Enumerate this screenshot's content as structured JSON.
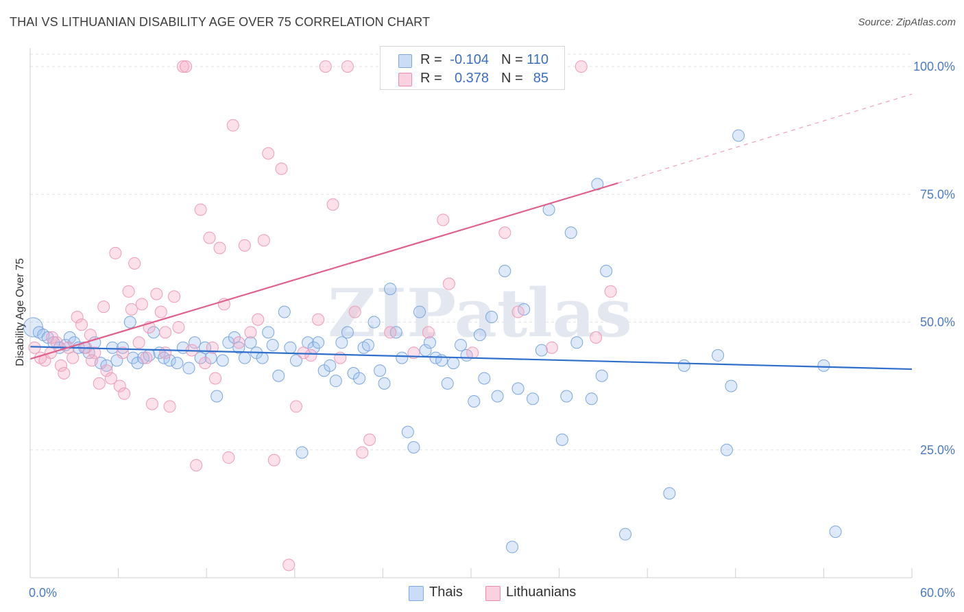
{
  "title": "THAI VS LITHUANIAN DISABILITY AGE OVER 75 CORRELATION CHART",
  "source": "Source: ZipAtlas.com",
  "watermark": "ZIPatlas",
  "legend": {
    "rows": [
      {
        "r_label": "R =",
        "r_value": "-0.104",
        "n_label": "N =",
        "n_value": "110",
        "color": "#a8c8f0"
      },
      {
        "r_label": "R =",
        "r_value": "0.378",
        "n_label": "N =",
        "n_value": "85",
        "color": "#f5b8cc"
      }
    ]
  },
  "bottom_legend": [
    {
      "label": "Thais",
      "color": "#a8c8f0"
    },
    {
      "label": "Lithuanians",
      "color": "#f5b8cc"
    }
  ],
  "chart_data": {
    "type": "scatter",
    "title": "THAI VS LITHUANIAN DISABILITY AGE OVER 75 CORRELATION CHART",
    "xlabel": "",
    "ylabel": "Disability Age Over 75",
    "xlim": [
      0,
      60
    ],
    "ylim": [
      0,
      105
    ],
    "x_tick_labels": [
      "0.0%",
      "60.0%"
    ],
    "y_tick_labels": [
      "100.0%",
      "75.0%",
      "50.0%",
      "25.0%"
    ],
    "y_ticks": [
      100,
      75,
      50,
      25
    ],
    "grid": true,
    "legend_placement": "bottom-center",
    "series": [
      {
        "name": "Thais",
        "color": "#6b9fe0",
        "trend": {
          "x0": 0,
          "y0": 45.2,
          "x1": 60,
          "y1": 40.8
        },
        "points": [
          [
            0.2,
            49
          ],
          [
            0.6,
            48
          ],
          [
            0.9,
            47.5
          ],
          [
            1.2,
            47
          ],
          [
            1.6,
            46
          ],
          [
            2.0,
            45
          ],
          [
            2.4,
            45.5
          ],
          [
            2.7,
            47
          ],
          [
            3.0,
            46
          ],
          [
            3.3,
            45
          ],
          [
            3.7,
            45
          ],
          [
            4.0,
            44
          ],
          [
            4.4,
            46
          ],
          [
            4.8,
            42
          ],
          [
            5.2,
            41.5
          ],
          [
            5.6,
            45
          ],
          [
            5.9,
            42.5
          ],
          [
            6.3,
            45
          ],
          [
            6.8,
            50
          ],
          [
            7.0,
            43
          ],
          [
            7.3,
            42
          ],
          [
            7.7,
            43
          ],
          [
            8.1,
            43.5
          ],
          [
            8.4,
            48
          ],
          [
            8.8,
            44
          ],
          [
            9.1,
            43
          ],
          [
            9.5,
            42.5
          ],
          [
            10,
            42
          ],
          [
            10.4,
            45
          ],
          [
            10.8,
            41
          ],
          [
            11.2,
            46
          ],
          [
            11.6,
            43
          ],
          [
            11.9,
            45
          ],
          [
            12.3,
            43
          ],
          [
            12.7,
            35.5
          ],
          [
            13.1,
            42.5
          ],
          [
            13.5,
            46
          ],
          [
            13.9,
            47
          ],
          [
            14.2,
            45
          ],
          [
            14.6,
            43
          ],
          [
            15,
            46
          ],
          [
            15.4,
            44
          ],
          [
            15.8,
            43
          ],
          [
            16.2,
            48
          ],
          [
            16.5,
            45.5
          ],
          [
            16.9,
            39.5
          ],
          [
            17.3,
            52
          ],
          [
            17.7,
            45
          ],
          [
            18.1,
            42.5
          ],
          [
            18.5,
            24.5
          ],
          [
            18.9,
            46
          ],
          [
            19.3,
            45
          ],
          [
            19.6,
            46
          ],
          [
            20,
            40.5
          ],
          [
            20.4,
            41.5
          ],
          [
            20.8,
            38.5
          ],
          [
            21.2,
            46
          ],
          [
            21.6,
            48
          ],
          [
            22,
            40
          ],
          [
            22.4,
            39
          ],
          [
            22.7,
            45
          ],
          [
            23,
            45.5
          ],
          [
            23.4,
            50
          ],
          [
            23.8,
            40.5
          ],
          [
            24.1,
            38
          ],
          [
            24.5,
            56.5
          ],
          [
            24.9,
            48
          ],
          [
            25.3,
            43
          ],
          [
            25.7,
            28.5
          ],
          [
            26.1,
            25.5
          ],
          [
            26.5,
            52
          ],
          [
            26.9,
            44.5
          ],
          [
            27.2,
            46
          ],
          [
            27.6,
            43
          ],
          [
            28,
            42.5
          ],
          [
            28.4,
            38
          ],
          [
            28.8,
            42
          ],
          [
            29.3,
            45.5
          ],
          [
            29.7,
            43.5
          ],
          [
            30.2,
            34.5
          ],
          [
            30.6,
            47.5
          ],
          [
            30.9,
            39
          ],
          [
            31.4,
            51
          ],
          [
            31.8,
            35.5
          ],
          [
            32.3,
            60
          ],
          [
            32.8,
            6
          ],
          [
            33.2,
            37
          ],
          [
            33.6,
            52.5
          ],
          [
            34.2,
            35
          ],
          [
            34.8,
            44.5
          ],
          [
            35.3,
            72
          ],
          [
            36.2,
            27
          ],
          [
            36.5,
            35.5
          ],
          [
            36.8,
            67.5
          ],
          [
            37.2,
            46
          ],
          [
            38.2,
            35
          ],
          [
            38.6,
            77
          ],
          [
            38.9,
            39.5
          ],
          [
            39.2,
            60
          ],
          [
            40.5,
            8.5
          ],
          [
            43.5,
            16.5
          ],
          [
            44.5,
            41.5
          ],
          [
            46.8,
            43.5
          ],
          [
            47.4,
            25
          ],
          [
            47.7,
            37.5
          ],
          [
            48.2,
            86.5
          ],
          [
            54,
            41.5
          ],
          [
            54.8,
            9
          ]
        ]
      },
      {
        "name": "Lithuanians",
        "color": "#f08aaa",
        "trend": {
          "x0": 0,
          "y0": 42.8,
          "x1": 40,
          "y1": 77.2
        },
        "trend_dashed": {
          "x0": 40,
          "y0": 77.2,
          "x1": 60,
          "y1": 94.6
        },
        "points": [
          [
            0.3,
            45
          ],
          [
            0.7,
            43
          ],
          [
            1.0,
            42.5
          ],
          [
            1.4,
            44
          ],
          [
            1.8,
            46
          ],
          [
            2.1,
            41.5
          ],
          [
            2.3,
            40
          ],
          [
            2.6,
            45
          ],
          [
            2.9,
            43
          ],
          [
            3.2,
            51
          ],
          [
            3.5,
            49.5
          ],
          [
            3.8,
            45
          ],
          [
            4.1,
            47.5
          ],
          [
            4.4,
            44
          ],
          [
            4.7,
            38
          ],
          [
            5.0,
            53
          ],
          [
            5.2,
            40.5
          ],
          [
            5.5,
            39
          ],
          [
            5.8,
            63.5
          ],
          [
            6.1,
            37.5
          ],
          [
            6.4,
            36
          ],
          [
            6.7,
            56
          ],
          [
            6.9,
            52.5
          ],
          [
            7.1,
            61.5
          ],
          [
            7.4,
            46
          ],
          [
            7.6,
            53.5
          ],
          [
            7.9,
            43
          ],
          [
            8.1,
            49
          ],
          [
            8.3,
            34
          ],
          [
            8.6,
            55.5
          ],
          [
            8.9,
            52
          ],
          [
            9.2,
            48
          ],
          [
            9.5,
            33.5
          ],
          [
            9.8,
            55
          ],
          [
            10.1,
            49
          ],
          [
            10.4,
            100
          ],
          [
            10.6,
            100
          ],
          [
            11,
            44.5
          ],
          [
            11.3,
            22
          ],
          [
            11.6,
            72
          ],
          [
            11.9,
            42
          ],
          [
            12.2,
            66.5
          ],
          [
            12.6,
            39
          ],
          [
            12.9,
            64.5
          ],
          [
            13.2,
            53.5
          ],
          [
            13.5,
            23.5
          ],
          [
            13.8,
            88.5
          ],
          [
            14.2,
            46
          ],
          [
            14.6,
            65
          ],
          [
            15.0,
            48
          ],
          [
            15.5,
            50.5
          ],
          [
            15.9,
            66
          ],
          [
            16.2,
            83
          ],
          [
            16.6,
            23
          ],
          [
            17.1,
            80
          ],
          [
            17.6,
            2.5
          ],
          [
            18.1,
            33.5
          ],
          [
            18.6,
            44
          ],
          [
            19.1,
            43.5
          ],
          [
            19.6,
            50.5
          ],
          [
            20.1,
            100
          ],
          [
            20.6,
            73
          ],
          [
            21.1,
            43
          ],
          [
            21.6,
            100
          ],
          [
            22.1,
            52
          ],
          [
            22.6,
            24.5
          ],
          [
            23.1,
            27
          ],
          [
            24.5,
            48
          ],
          [
            25.2,
            100
          ],
          [
            26.1,
            44
          ],
          [
            27.1,
            48
          ],
          [
            28.1,
            70
          ],
          [
            28.5,
            57.5
          ],
          [
            30.1,
            44
          ],
          [
            32.3,
            67.5
          ],
          [
            33.2,
            52
          ],
          [
            35.5,
            45
          ],
          [
            37.5,
            100
          ],
          [
            38.5,
            47
          ],
          [
            39.5,
            56
          ],
          [
            1.5,
            47
          ],
          [
            4.2,
            42.5
          ],
          [
            6.3,
            44
          ],
          [
            9.2,
            44
          ],
          [
            12.4,
            45
          ]
        ]
      }
    ]
  }
}
